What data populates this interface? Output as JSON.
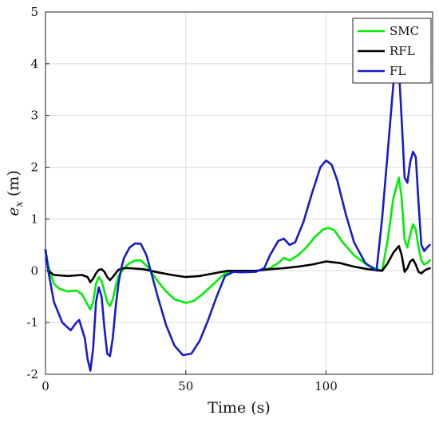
{
  "chart_data": {
    "type": "line",
    "title": "",
    "xlabel": "Time (s)",
    "ylabel": "e_x (m)",
    "xlim": [
      0,
      138
    ],
    "ylim": [
      -2,
      5
    ],
    "grid": true,
    "legend_position": "top-right",
    "x_ticks": [
      0,
      50,
      100
    ],
    "y_ticks": [
      -2,
      -1,
      0,
      1,
      2,
      3,
      4,
      5
    ],
    "series": [
      {
        "name": "SMC",
        "color": "#00ee00",
        "x": [
          0,
          1,
          3,
          5,
          8,
          11,
          13,
          14,
          16,
          17,
          18,
          19,
          20,
          21,
          22,
          23,
          24,
          25,
          26,
          28,
          30,
          32,
          34,
          36,
          38,
          40,
          43,
          46,
          50,
          53,
          56,
          60,
          64,
          67,
          70,
          75,
          80,
          83,
          85,
          87,
          90,
          93,
          96,
          99,
          101,
          103,
          106,
          110,
          115,
          120,
          122,
          124,
          126,
          127,
          128,
          129,
          130,
          131,
          132,
          133,
          134,
          135,
          136,
          137
        ],
        "y": [
          0.4,
          0.1,
          -0.25,
          -0.35,
          -0.4,
          -0.38,
          -0.45,
          -0.55,
          -0.75,
          -0.6,
          -0.25,
          -0.12,
          -0.2,
          -0.4,
          -0.6,
          -0.68,
          -0.55,
          -0.3,
          -0.1,
          0.05,
          0.15,
          0.2,
          0.2,
          0.1,
          -0.05,
          -0.2,
          -0.4,
          -0.55,
          -0.62,
          -0.58,
          -0.45,
          -0.25,
          -0.05,
          0.0,
          -0.02,
          -0.01,
          0.05,
          0.15,
          0.25,
          0.2,
          0.3,
          0.45,
          0.65,
          0.8,
          0.83,
          0.78,
          0.55,
          0.3,
          0.1,
          0.0,
          0.6,
          1.4,
          1.8,
          1.4,
          0.6,
          0.45,
          0.7,
          0.9,
          0.8,
          0.45,
          0.2,
          0.12,
          0.15,
          0.2
        ]
      },
      {
        "name": "RFL",
        "color": "#000000",
        "x": [
          0,
          1,
          3,
          8,
          13,
          15,
          16,
          17,
          18,
          19,
          20,
          21,
          22,
          23,
          24,
          25,
          26,
          28,
          30,
          35,
          40,
          45,
          50,
          55,
          60,
          65,
          70,
          75,
          80,
          85,
          90,
          95,
          100,
          105,
          110,
          115,
          120,
          122,
          124,
          126,
          127,
          128,
          129,
          130,
          131,
          132,
          133,
          134,
          135,
          136,
          137
        ],
        "y": [
          0.4,
          0.0,
          -0.08,
          -0.1,
          -0.08,
          -0.12,
          -0.22,
          -0.15,
          -0.05,
          0.02,
          0.03,
          -0.02,
          -0.12,
          -0.18,
          -0.12,
          -0.05,
          0.02,
          0.05,
          0.05,
          0.03,
          -0.03,
          -0.08,
          -0.12,
          -0.1,
          -0.05,
          0.0,
          0.0,
          0.0,
          0.03,
          0.05,
          0.08,
          0.12,
          0.18,
          0.15,
          0.08,
          0.03,
          0.0,
          0.15,
          0.35,
          0.48,
          0.3,
          -0.02,
          0.05,
          0.18,
          0.22,
          0.12,
          -0.02,
          -0.05,
          0.0,
          0.03,
          0.05
        ]
      },
      {
        "name": "FL",
        "color": "#1a1acd",
        "x": [
          0,
          1,
          3,
          6,
          9,
          11,
          12,
          14,
          15,
          16,
          17,
          18,
          19,
          20,
          21,
          22,
          23,
          24,
          25,
          26,
          27,
          28,
          30,
          32,
          34,
          36,
          38,
          40,
          43,
          46,
          49,
          52,
          55,
          58,
          61,
          64,
          67,
          70,
          75,
          78,
          80,
          83,
          85,
          87,
          89,
          92,
          95,
          98,
          100,
          102,
          104,
          107,
          110,
          114,
          118,
          120,
          122,
          124,
          125,
          126,
          127,
          128,
          129,
          130,
          131,
          132,
          133,
          134,
          135,
          136,
          137
        ],
        "y": [
          0.4,
          0.0,
          -0.6,
          -1.0,
          -1.15,
          -1.0,
          -0.95,
          -1.3,
          -1.7,
          -1.93,
          -1.5,
          -0.6,
          -0.32,
          -0.5,
          -1.1,
          -1.6,
          -1.65,
          -1.3,
          -0.7,
          -0.25,
          0.05,
          0.25,
          0.45,
          0.53,
          0.52,
          0.3,
          -0.1,
          -0.5,
          -1.05,
          -1.45,
          -1.63,
          -1.6,
          -1.35,
          -0.95,
          -0.5,
          -0.1,
          -0.02,
          -0.03,
          -0.02,
          0.05,
          0.3,
          0.58,
          0.62,
          0.5,
          0.55,
          0.95,
          1.5,
          2.0,
          2.13,
          2.05,
          1.75,
          1.1,
          0.55,
          0.15,
          0.0,
          1.0,
          2.3,
          3.6,
          4.0,
          3.9,
          2.9,
          1.8,
          1.7,
          2.1,
          2.3,
          2.2,
          1.3,
          0.5,
          0.38,
          0.45,
          0.5
        ]
      }
    ]
  }
}
